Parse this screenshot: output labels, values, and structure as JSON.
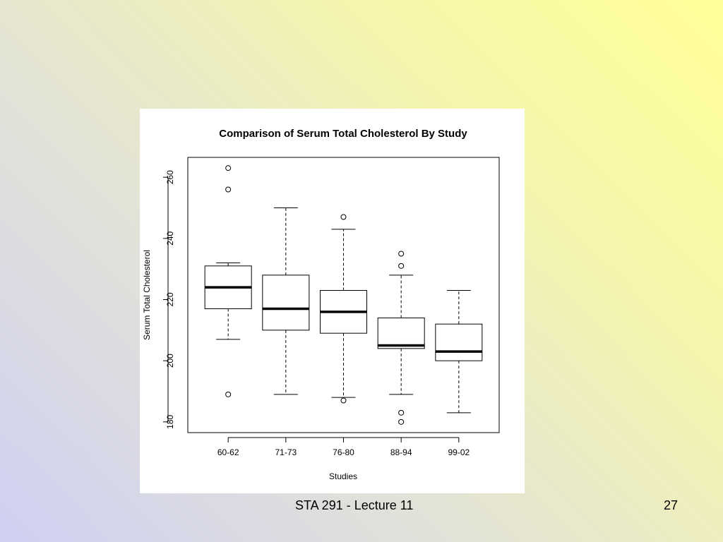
{
  "footer": {
    "title": "STA 291 - Lecture 11",
    "slide_number": "27"
  },
  "chart_data": {
    "type": "boxplot",
    "title": "Comparison of Serum Total Cholesterol By Study",
    "xlabel": "Studies",
    "ylabel": "Serum Total Cholesterol",
    "categories": [
      "60-62",
      "71-73",
      "76-80",
      "88-94",
      "99-02"
    ],
    "ylim": [
      176.5,
      266.5
    ],
    "yticks": [
      180,
      200,
      220,
      240,
      260
    ],
    "grid": false,
    "boxes": [
      {
        "category": "60-62",
        "whisker_low": 207,
        "q1": 217,
        "median": 224,
        "q3": 231,
        "whisker_high": 232,
        "outliers": [
          189,
          256,
          263
        ]
      },
      {
        "category": "71-73",
        "whisker_low": 189,
        "q1": 210,
        "median": 217,
        "q3": 228,
        "whisker_high": 250,
        "outliers": []
      },
      {
        "category": "76-80",
        "whisker_low": 188,
        "q1": 209,
        "median": 216,
        "q3": 223,
        "whisker_high": 243,
        "outliers": [
          187,
          247
        ]
      },
      {
        "category": "88-94",
        "whisker_low": 189,
        "q1": 204,
        "median": 205,
        "q3": 214,
        "whisker_high": 228,
        "outliers": [
          180,
          183,
          231,
          235
        ]
      },
      {
        "category": "99-02",
        "whisker_low": 183,
        "q1": 200,
        "median": 203,
        "q3": 212,
        "whisker_high": 223,
        "outliers": []
      }
    ]
  }
}
